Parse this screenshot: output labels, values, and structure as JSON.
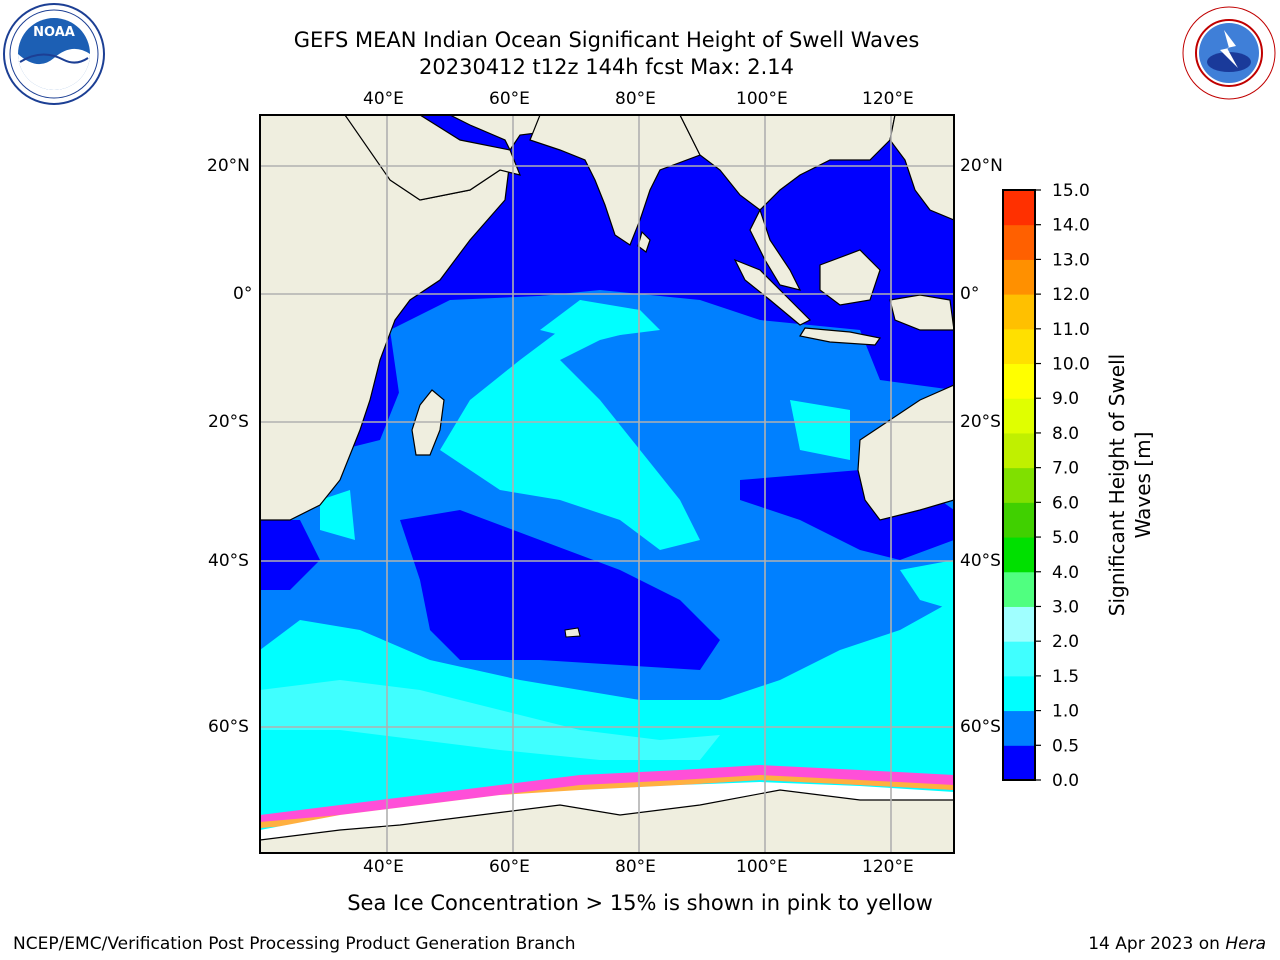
{
  "header": {
    "title_line1": "GEFS MEAN Indian Ocean Significant Height of Swell Waves",
    "title_line2": "20230412 t12z 144h fcst   Max: 2.14"
  },
  "logos": {
    "left": {
      "name": "NOAA",
      "ring_text": "NATIONAL OCEANIC AND ATMOSPHERIC ADMINISTRATION · U.S. DEPARTMENT OF COMMERCE"
    },
    "right": {
      "name": "NATIONAL WEATHER SERVICE"
    }
  },
  "map": {
    "lon_labels": [
      "40°E",
      "60°E",
      "80°E",
      "100°E",
      "120°E"
    ],
    "lat_labels": [
      "20°N",
      "0°",
      "20°S",
      "40°S",
      "60°S"
    ],
    "colors": {
      "land": "#efeedf",
      "ice": "#ffffff",
      "grid": "#b0b0b0"
    }
  },
  "colorbar": {
    "label_line1": "Significant Height of Swell",
    "label_line2": "Waves [m]",
    "ticks": [
      "15.0",
      "14.0",
      "13.0",
      "12.0",
      "11.0",
      "10.0",
      "9.0",
      "8.0",
      "7.0",
      "6.0",
      "5.0",
      "4.0",
      "3.0",
      "2.0",
      "1.5",
      "1.0",
      "0.5",
      "0.0"
    ],
    "colors_bottom_to_top": [
      "#0000ff",
      "#0080ff",
      "#00ffff",
      "#40ffff",
      "#a0ffff",
      "#50ff80",
      "#00e000",
      "#40d000",
      "#80e000",
      "#c0f000",
      "#e0ff00",
      "#ffff00",
      "#ffe000",
      "#ffc000",
      "#ff9000",
      "#ff6000",
      "#ff3000"
    ]
  },
  "caption": "Sea Ice Concentration > 15% is shown in pink to yellow",
  "footer": {
    "left": "NCEP/EMC/Verification Post Processing Product Generation Branch",
    "right_prefix": "14 Apr 2023 on ",
    "right_host": "Hera"
  }
}
